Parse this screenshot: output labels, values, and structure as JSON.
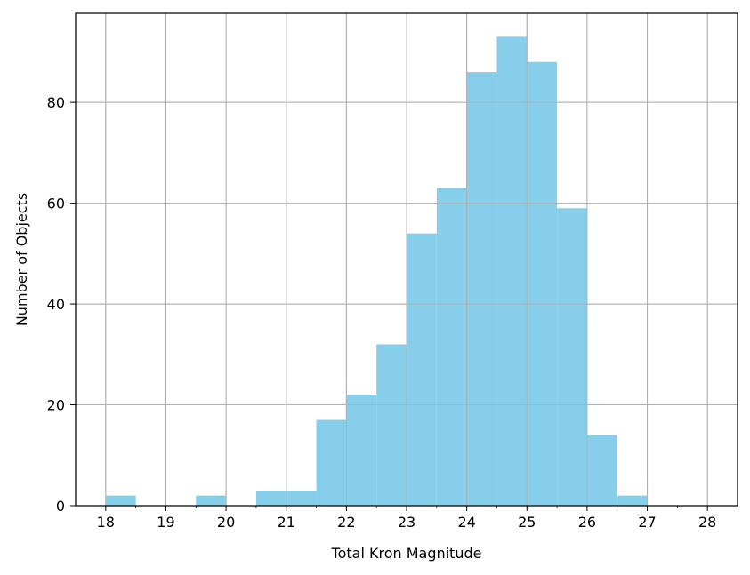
{
  "chart_data": {
    "type": "bar",
    "xlabel": "Total Kron Magnitude",
    "ylabel": "Number of Objects",
    "xlim": [
      17.5,
      28.5
    ],
    "ylim": [
      0,
      97.65
    ],
    "grid": true,
    "bar_color": "#87CEEB",
    "grid_color": "#b0b0b0",
    "x_ticks": [
      18,
      19,
      20,
      21,
      22,
      23,
      24,
      25,
      26,
      27,
      28
    ],
    "y_ticks": [
      0,
      20,
      40,
      60,
      80
    ],
    "bin_width": 0.5,
    "bins": [
      {
        "x": 18.0,
        "count": 2
      },
      {
        "x": 18.5,
        "count": 0
      },
      {
        "x": 19.0,
        "count": 0
      },
      {
        "x": 19.5,
        "count": 2
      },
      {
        "x": 20.0,
        "count": 0
      },
      {
        "x": 20.5,
        "count": 3
      },
      {
        "x": 21.0,
        "count": 3
      },
      {
        "x": 21.5,
        "count": 17
      },
      {
        "x": 22.0,
        "count": 22
      },
      {
        "x": 22.5,
        "count": 32
      },
      {
        "x": 23.0,
        "count": 54
      },
      {
        "x": 23.5,
        "count": 63
      },
      {
        "x": 24.0,
        "count": 86
      },
      {
        "x": 24.5,
        "count": 93
      },
      {
        "x": 25.0,
        "count": 88
      },
      {
        "x": 25.5,
        "count": 59
      },
      {
        "x": 26.0,
        "count": 14
      },
      {
        "x": 26.5,
        "count": 2
      },
      {
        "x": 27.0,
        "count": 0
      },
      {
        "x": 27.5,
        "count": 0
      }
    ]
  }
}
